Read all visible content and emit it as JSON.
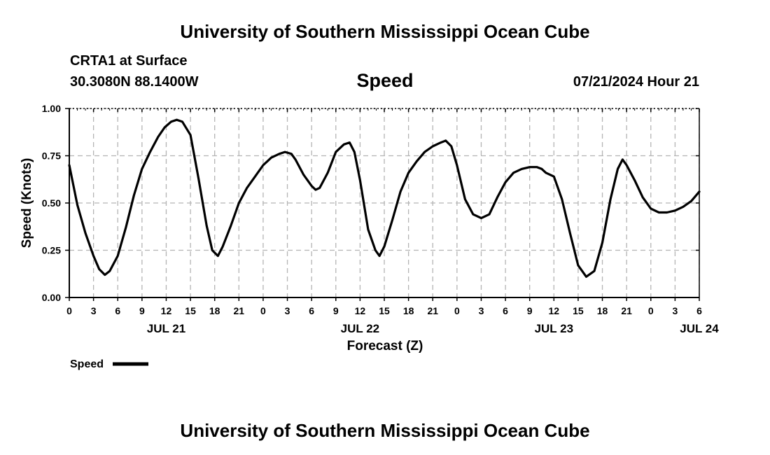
{
  "header": {
    "title": "University of Southern Mississippi Ocean Cube",
    "station": "CRTA1 at Surface",
    "coordinates": "30.3080N  88.1400W",
    "chart_title": "Speed",
    "timestamp": "07/21/2024 Hour 21"
  },
  "footer": {
    "title": "University of Southern Mississippi Ocean Cube"
  },
  "chart_data": {
    "type": "line",
    "title": "Speed",
    "xlabel": "Forecast (Z)",
    "ylabel": "Speed (Knots)",
    "xlim": [
      0,
      78
    ],
    "ylim": [
      0,
      1.0
    ],
    "grid": true,
    "y_ticks": [
      0,
      0.25,
      0.5,
      0.75,
      1.0
    ],
    "y_tick_labels": [
      "0.00",
      "0.25",
      "0.50",
      "0.75",
      "1.00"
    ],
    "x_ticks": [
      0,
      3,
      6,
      9,
      12,
      15,
      18,
      21,
      24,
      27,
      30,
      33,
      36,
      39,
      42,
      45,
      48,
      51,
      54,
      57,
      60,
      63,
      66,
      69,
      72,
      75,
      78
    ],
    "x_tick_labels": [
      "0",
      "3",
      "6",
      "9",
      "12",
      "15",
      "18",
      "21",
      "0",
      "3",
      "6",
      "9",
      "12",
      "15",
      "18",
      "21",
      "0",
      "3",
      "6",
      "9",
      "12",
      "15",
      "18",
      "21",
      "0",
      "3",
      "6"
    ],
    "day_labels": [
      {
        "hour": 12,
        "label": "JUL 21"
      },
      {
        "hour": 36,
        "label": "JUL 22"
      },
      {
        "hour": 60,
        "label": "JUL 23"
      },
      {
        "hour": 78,
        "label": "JUL 24"
      }
    ],
    "legend": {
      "label": "Speed",
      "placement": "bottom-left"
    },
    "series": [
      {
        "name": "Speed",
        "x": [
          0,
          1,
          2,
          3,
          3.7,
          4.4,
          5,
          6,
          7,
          8,
          9,
          10,
          11,
          11.8,
          12.6,
          13.3,
          14,
          15,
          16,
          17,
          17.7,
          18.4,
          19,
          20,
          21,
          22,
          23,
          24,
          25,
          26,
          26.7,
          27.5,
          28,
          29,
          30,
          30.5,
          31,
          32,
          33,
          34,
          34.7,
          35.3,
          36,
          37,
          37.9,
          38.4,
          39,
          40,
          41,
          42,
          43,
          44,
          45,
          46,
          46.6,
          47.3,
          48,
          49,
          50,
          51,
          52,
          53,
          54,
          55,
          56,
          57,
          57.9,
          58.5,
          59,
          60,
          61,
          62,
          63,
          64,
          65,
          66,
          67,
          67.9,
          68.5,
          69,
          70,
          71,
          72,
          73,
          74,
          75,
          76,
          77,
          78
        ],
        "y": [
          0.7,
          0.49,
          0.34,
          0.22,
          0.15,
          0.12,
          0.14,
          0.22,
          0.37,
          0.54,
          0.68,
          0.77,
          0.85,
          0.9,
          0.93,
          0.94,
          0.93,
          0.86,
          0.63,
          0.38,
          0.25,
          0.22,
          0.27,
          0.38,
          0.5,
          0.58,
          0.64,
          0.7,
          0.74,
          0.76,
          0.77,
          0.76,
          0.73,
          0.65,
          0.59,
          0.57,
          0.58,
          0.66,
          0.77,
          0.81,
          0.82,
          0.77,
          0.62,
          0.36,
          0.25,
          0.22,
          0.27,
          0.41,
          0.56,
          0.66,
          0.72,
          0.77,
          0.8,
          0.82,
          0.83,
          0.8,
          0.7,
          0.52,
          0.44,
          0.42,
          0.44,
          0.53,
          0.61,
          0.66,
          0.68,
          0.69,
          0.69,
          0.68,
          0.66,
          0.64,
          0.52,
          0.34,
          0.17,
          0.11,
          0.14,
          0.29,
          0.52,
          0.68,
          0.73,
          0.7,
          0.62,
          0.53,
          0.47,
          0.45,
          0.45,
          0.46,
          0.48,
          0.51,
          0.56
        ]
      }
    ],
    "colors": {
      "line": "#000000",
      "grid": "#b4b4b4",
      "axis": "#000000"
    }
  }
}
